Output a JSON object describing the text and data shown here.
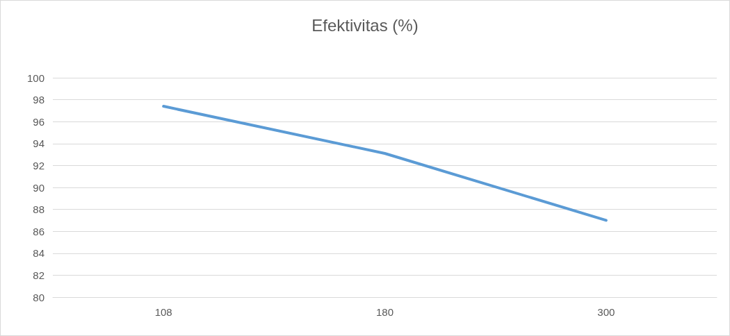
{
  "chart_data": {
    "type": "line",
    "title": "Efektivitas (%)",
    "categories": [
      "108",
      "180",
      "300"
    ],
    "series": [
      {
        "color": "#5b9bd5",
        "values": [
          97.4,
          93.1,
          87.0
        ]
      }
    ],
    "ylim": [
      80,
      100
    ],
    "yticks": [
      80,
      82,
      84,
      86,
      88,
      90,
      92,
      94,
      96,
      98,
      100
    ],
    "grid": "y",
    "marker": "none",
    "line_style": "solid"
  }
}
